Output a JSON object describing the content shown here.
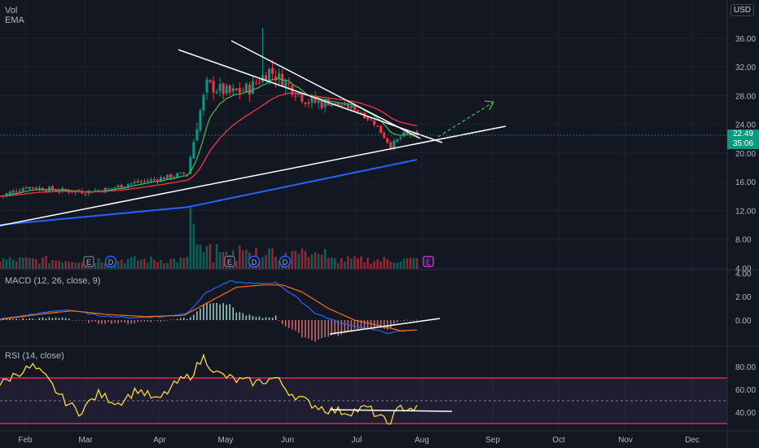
{
  "header": {
    "vol_label": "Vol",
    "ema_label": "EMA",
    "currency": "USD"
  },
  "last_price": {
    "price": "22.49",
    "countdown": "35:06"
  },
  "panels": {
    "macd": {
      "label": "MACD (12, 26, close, 9)"
    },
    "rsi": {
      "label": "RSI (14, close)"
    }
  },
  "x_axis": {
    "labels": [
      "Feb",
      "Mar",
      "Apr",
      "May",
      "Jun",
      "Jul",
      "Aug",
      "Sep",
      "Oct",
      "Nov",
      "Dec"
    ]
  },
  "colors": {
    "background": "#131722",
    "up": "#089981",
    "down": "#f23645",
    "ema_short": "#4caf50",
    "ema_mid": "#f23645",
    "ema_long": "#2962ff",
    "macd_line": "#2962ff",
    "signal_line": "#ff6d00",
    "rsi_line": "#fdd835",
    "rsi_band": "#e91e63",
    "projection": "#4caf50",
    "trendline": "#ffffff"
  },
  "chart_data": [
    {
      "type": "candlestick",
      "ylim": [
        4,
        38
      ],
      "yticks": [
        "36.00",
        "32.00",
        "28.00",
        "24.00",
        "20.00",
        "16.00",
        "12.00",
        "8.00",
        "4.00"
      ],
      "earnings_markers": [
        "E",
        "E",
        "E"
      ],
      "dividend_markers": [
        "D",
        "D",
        "D"
      ],
      "price_path": [
        [
          "Feb",
          14.0
        ],
        [
          "Feb-mid",
          15.3
        ],
        [
          "Mar",
          14.6
        ],
        [
          "Mar-mid",
          14.8
        ],
        [
          "Apr",
          15.8
        ],
        [
          "Apr-mid",
          16.6
        ],
        [
          "May",
          17.5
        ],
        [
          "May-early",
          29.5
        ],
        [
          "May-mid",
          28.5
        ],
        [
          "Jun",
          31.5
        ],
        [
          "Jun-mid",
          27.5
        ],
        [
          "Jul",
          26.5
        ],
        [
          "Jul-mid",
          24.0
        ],
        [
          "Jul-late",
          21.5
        ],
        [
          "Aug",
          22.49
        ]
      ],
      "ema_series_values": {
        "short_end": 23.2,
        "mid_end": 24.6,
        "long_end": 18.3
      }
    },
    {
      "type": "line",
      "name": "MACD (12, 26, close, 9)",
      "ylim": [
        -2,
        4
      ],
      "yticks": [
        "4.00",
        "2.00",
        "0.00"
      ]
    },
    {
      "type": "line",
      "name": "RSI (14, close)",
      "ylim": [
        25,
        92
      ],
      "yticks": [
        "80.00",
        "60.00",
        "40.00"
      ],
      "bands": [
        70,
        30
      ]
    }
  ]
}
